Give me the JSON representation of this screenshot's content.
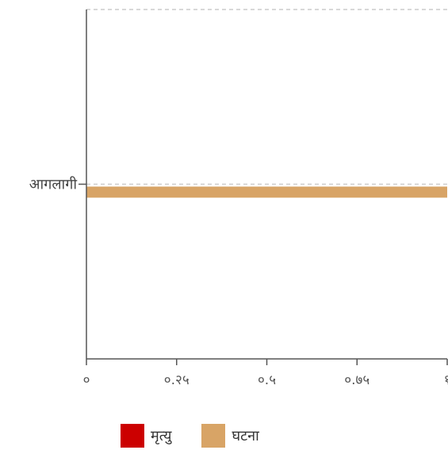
{
  "chart_data": {
    "type": "bar",
    "orientation": "horizontal",
    "categories": [
      "आगलागी"
    ],
    "series": [
      {
        "name": "मृत्यु",
        "color": "#cc0000",
        "values": [
          0
        ]
      },
      {
        "name": "घटना",
        "color": "#d8a466",
        "values": [
          1
        ]
      }
    ],
    "xlim": [
      0,
      1
    ],
    "xticks": [
      0,
      0.25,
      0.5,
      0.75,
      1
    ],
    "xtick_labels": [
      "०",
      "०.२५",
      "०.५",
      "०.७५",
      "१"
    ],
    "gridlines": "horizontal-dashed",
    "legend_position": "bottom"
  },
  "colors": {
    "axis": "#555555",
    "grid": "#cccccc"
  }
}
